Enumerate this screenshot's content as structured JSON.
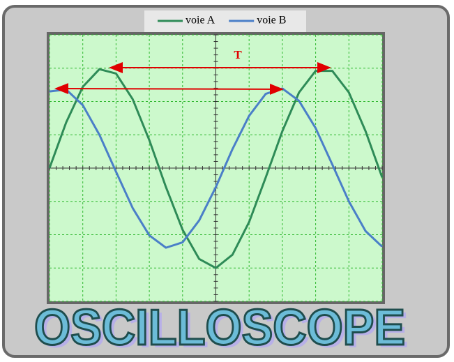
{
  "chart_data": {
    "type": "line",
    "annotation": "T",
    "banner": "OSCILLOSCOPE",
    "x": [
      0,
      0.5,
      1,
      1.5,
      2,
      2.5,
      3,
      3.5,
      4,
      4.5,
      5,
      5.5,
      6,
      6.5,
      7,
      7.5,
      8,
      8.5,
      9,
      9.5,
      10
    ],
    "series": [
      {
        "name": "voie A",
        "color": "#2e8b57",
        "values": [
          0,
          1.37,
          2.44,
          2.97,
          2.84,
          2.07,
          0.84,
          -0.57,
          -1.85,
          -2.73,
          -3.0,
          -2.6,
          -1.62,
          -0.28,
          1.11,
          2.27,
          2.92,
          2.92,
          2.27,
          1.11,
          -0.28
        ]
      },
      {
        "name": "voie B",
        "color": "#4a7fc8",
        "values": [
          2.3,
          2.36,
          1.89,
          1.0,
          -0.11,
          -1.2,
          -2.02,
          -2.39,
          -2.23,
          -1.57,
          -0.57,
          0.57,
          1.57,
          2.23,
          2.39,
          2.02,
          1.2,
          0.11,
          -1.0,
          -1.89,
          -2.36
        ]
      }
    ],
    "xlim": [
      0,
      10
    ],
    "ylim": [
      -4,
      4
    ],
    "xticks": [
      0,
      1,
      2,
      3,
      4,
      5,
      6,
      7,
      8,
      9,
      10
    ],
    "yticks": [
      -4,
      -3,
      -2,
      -1,
      0,
      1,
      2,
      3,
      4
    ],
    "grid": true,
    "legend": "top"
  }
}
